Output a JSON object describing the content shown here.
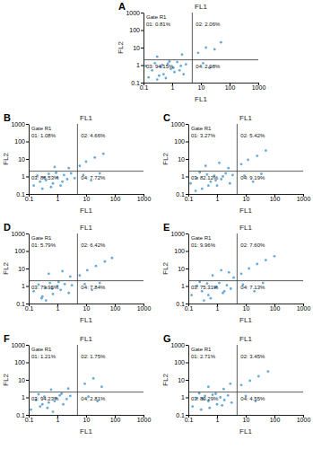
{
  "chart_data": [
    {
      "type": "scatter",
      "panel": "A",
      "title": "FL1",
      "x_label": "FL1",
      "y_label": "FL2",
      "log": true,
      "xlim": [
        0.1,
        1000
      ],
      "ylim": [
        0.1,
        1000
      ],
      "xticks": [
        0.1,
        1,
        10,
        100,
        1000
      ],
      "yticks": [
        0.1,
        1,
        10,
        100,
        1000
      ],
      "color": "#4f9bd1",
      "gate": "Gate R1",
      "gate_x": 5,
      "gate_y": 2,
      "quadrants": {
        "values": [
          0.81,
          2.06,
          94.15,
          2.98
        ],
        "value_labels": [
          "01: 0.81%",
          "02: 2.06%",
          "03: 94.15%",
          "04: 2.98%"
        ]
      },
      "x": [
        0.15,
        0.2,
        0.3,
        0.4,
        0.5,
        0.7,
        0.9,
        1.2,
        1.5,
        2,
        2.5,
        3,
        0.25,
        0.35,
        0.6,
        0.8,
        1.1,
        1.8,
        0.12,
        0.45,
        8,
        15,
        30,
        12,
        20,
        50,
        0.3,
        2.2
      ],
      "y": [
        0.2,
        0.5,
        0.15,
        0.8,
        0.3,
        1.2,
        0.6,
        0.4,
        1.5,
        0.9,
        0.3,
        1.1,
        1.3,
        0.25,
        0.18,
        1.6,
        0.7,
        0.5,
        0.9,
        1.0,
        5,
        10,
        8,
        1.3,
        0.7,
        20,
        3,
        4
      ]
    },
    {
      "type": "scatter",
      "panel": "B",
      "title": "FL1",
      "x_label": "FL1",
      "y_label": "FL2",
      "log": true,
      "xlim": [
        0.1,
        1000
      ],
      "ylim": [
        0.1,
        1000
      ],
      "xticks": [
        0.1,
        1,
        10,
        100,
        1000
      ],
      "yticks": [
        0.1,
        1,
        10,
        100,
        1000
      ],
      "color": "#4f9bd1",
      "gate": "Gate R1",
      "gate_x": 5,
      "gate_y": 2,
      "quadrants": {
        "values": [
          1.08,
          4.66,
          86.53,
          7.72
        ],
        "value_labels": [
          "01: 1.08%",
          "02: 4.66%",
          "03: 86.53%",
          "04: 7.72%"
        ]
      },
      "x": [
        0.15,
        0.2,
        0.3,
        0.4,
        0.5,
        0.7,
        1,
        1.3,
        1.7,
        2.2,
        3,
        0.25,
        0.6,
        0.9,
        1.5,
        0.35,
        6,
        10,
        20,
        40,
        8,
        15,
        30,
        2.5,
        0.8,
        4
      ],
      "y": [
        0.3,
        1.1,
        0.2,
        0.6,
        1.4,
        0.4,
        0.9,
        0.3,
        1.2,
        0.7,
        1.5,
        0.5,
        0.25,
        1.6,
        0.5,
        0.9,
        4,
        7,
        12,
        20,
        1.2,
        0.6,
        1.5,
        3,
        3.5,
        0.8
      ]
    },
    {
      "type": "scatter",
      "panel": "C",
      "title": "FL1",
      "x_label": "FL1",
      "y_label": "FL2",
      "log": true,
      "xlim": [
        0.1,
        1000
      ],
      "ylim": [
        0.1,
        1000
      ],
      "xticks": [
        0.1,
        1,
        10,
        100,
        1000
      ],
      "yticks": [
        0.1,
        1,
        10,
        100,
        1000
      ],
      "color": "#4f9bd1",
      "gate": "Gate R1",
      "gate_x": 5,
      "gate_y": 2,
      "quadrants": {
        "values": [
          3.27,
          5.42,
          82.12,
          9.19
        ],
        "value_labels": [
          "01: 3.27%",
          "02: 5.42%",
          "03: 82.12%",
          "04: 9.19%"
        ]
      },
      "x": [
        0.12,
        0.2,
        0.3,
        0.45,
        0.6,
        0.8,
        1,
        1.4,
        2,
        2.8,
        0.25,
        0.5,
        0.9,
        1.6,
        3.5,
        0.18,
        7,
        12,
        25,
        50,
        9,
        18,
        35,
        0.4,
        1.2,
        2.5
      ],
      "y": [
        0.4,
        0.8,
        0.2,
        1.3,
        0.5,
        1.1,
        0.3,
        0.7,
        1.5,
        0.4,
        1.7,
        0.3,
        0.6,
        1.0,
        1.2,
        0.15,
        5,
        9,
        15,
        30,
        1.1,
        0.5,
        1.4,
        4,
        6,
        3
      ]
    },
    {
      "type": "scatter",
      "panel": "D",
      "title": "FL1",
      "x_label": "FL1",
      "y_label": "FL2",
      "log": true,
      "xlim": [
        0.1,
        1000
      ],
      "ylim": [
        0.1,
        1000
      ],
      "xticks": [
        0.1,
        1,
        10,
        100,
        1000
      ],
      "yticks": [
        0.1,
        1,
        10,
        100,
        1000
      ],
      "color": "#4f9bd1",
      "gate": "Gate R1",
      "gate_x": 5,
      "gate_y": 2,
      "quadrants": {
        "values": [
          5.79,
          6.42,
          79.95,
          7.84
        ],
        "value_labels": [
          "01: 5.79%",
          "02: 6.42%",
          "03: 79.95%",
          "04: 7.84%"
        ]
      },
      "x": [
        0.15,
        0.22,
        0.3,
        0.4,
        0.55,
        0.7,
        1,
        1.3,
        1.8,
        2.5,
        3.2,
        0.28,
        0.65,
        1.1,
        0.4,
        6,
        11,
        22,
        45,
        80,
        9,
        16,
        30,
        0.5,
        1.5,
        2.8
      ],
      "y": [
        0.5,
        1.2,
        0.25,
        0.8,
        1.5,
        0.35,
        1,
        0.6,
        1.3,
        0.4,
        1.1,
        0.2,
        0.7,
        1.7,
        0.15,
        4,
        8,
        14,
        25,
        40,
        1.3,
        0.6,
        1.5,
        5,
        7,
        3.5
      ]
    },
    {
      "type": "scatter",
      "panel": "E",
      "title": "FL1",
      "x_label": "FL1",
      "y_label": "FL2",
      "log": true,
      "xlim": [
        0.1,
        1000
      ],
      "ylim": [
        0.1,
        1000
      ],
      "xticks": [
        0.1,
        1,
        10,
        100,
        1000
      ],
      "yticks": [
        0.1,
        1,
        10,
        100,
        1000
      ],
      "color": "#4f9bd1",
      "gate": "Gate R1",
      "gate_x": 5,
      "gate_y": 2,
      "quadrants": {
        "values": [
          9.96,
          7.6,
          75.31,
          7.13
        ],
        "value_labels": [
          "01: 9.96%",
          "02: 7.60%",
          "03: 75.31%",
          "04: 7.13%"
        ]
      },
      "x": [
        0.13,
        0.2,
        0.3,
        0.45,
        0.6,
        0.85,
        1.2,
        1.6,
        2.2,
        3,
        0.25,
        0.5,
        0.95,
        1.8,
        0.35,
        7,
        13,
        25,
        50,
        100,
        8,
        20,
        40,
        0.7,
        1.4,
        2.6,
        3.8
      ],
      "y": [
        0.3,
        1.0,
        0.5,
        1.4,
        0.2,
        0.8,
        1.5,
        0.4,
        1.1,
        0.7,
        1.7,
        0.3,
        0.9,
        0.5,
        0.15,
        5,
        10,
        18,
        30,
        50,
        1.2,
        0.5,
        1.5,
        4,
        8,
        6,
        3
      ]
    },
    {
      "type": "scatter",
      "panel": "F",
      "title": "FL1",
      "x_label": "FL1",
      "y_label": "FL2",
      "log": true,
      "xlim": [
        0.1,
        1000
      ],
      "ylim": [
        0.1,
        1000
      ],
      "xticks": [
        0.1,
        1,
        10,
        100,
        1000
      ],
      "yticks": [
        0.1,
        1,
        10,
        100,
        1000
      ],
      "color": "#4f9bd1",
      "gate": "Gate R1",
      "gate_x": 5,
      "gate_y": 2,
      "quadrants": {
        "values": [
          1.21,
          1.75,
          94.23,
          2.81
        ],
        "value_labels": [
          "01: 1.21%",
          "02: 1.75%",
          "03: 94.23%",
          "04: 2.81%"
        ]
      },
      "x": [
        0.12,
        0.18,
        0.25,
        0.35,
        0.5,
        0.7,
        0.9,
        1.2,
        1.6,
        2.1,
        2.8,
        0.22,
        0.45,
        0.8,
        1.4,
        0.3,
        9,
        18,
        35,
        12,
        25,
        0.6,
        2.4
      ],
      "y": [
        0.2,
        0.7,
        0.3,
        1.1,
        0.5,
        0.15,
        0.9,
        1.3,
        0.4,
        0.8,
        1.2,
        1.5,
        0.25,
        0.6,
        1.6,
        0.4,
        6,
        12,
        4,
        1.1,
        0.6,
        2.8,
        3.2
      ]
    },
    {
      "type": "scatter",
      "panel": "G",
      "title": "FL1",
      "x_label": "FL1",
      "y_label": "FL2",
      "log": true,
      "xlim": [
        0.1,
        1000
      ],
      "ylim": [
        0.1,
        1000
      ],
      "xticks": [
        0.1,
        1,
        10,
        100,
        1000
      ],
      "yticks": [
        0.1,
        1,
        10,
        100,
        1000
      ],
      "color": "#4f9bd1",
      "gate": "Gate R1",
      "gate_x": 5,
      "gate_y": 2,
      "quadrants": {
        "values": [
          2.71,
          3.45,
          89.29,
          4.55
        ],
        "value_labels": [
          "01: 2.71%",
          "02: 3.45%",
          "03: 89.29%",
          "04: 4.55%"
        ]
      },
      "x": [
        0.14,
        0.2,
        0.28,
        0.38,
        0.5,
        0.7,
        1,
        1.3,
        1.8,
        2.4,
        3.2,
        0.24,
        0.55,
        0.9,
        1.5,
        0.32,
        7,
        14,
        28,
        60,
        10,
        22,
        0.5,
        1.7,
        2.9
      ],
      "y": [
        0.3,
        0.9,
        0.2,
        1.2,
        0.6,
        1.4,
        0.4,
        1.0,
        0.7,
        1.3,
        0.5,
        1.7,
        0.25,
        1.6,
        0.35,
        0.8,
        5,
        9,
        16,
        30,
        1.2,
        0.6,
        4,
        3,
        6
      ]
    }
  ]
}
